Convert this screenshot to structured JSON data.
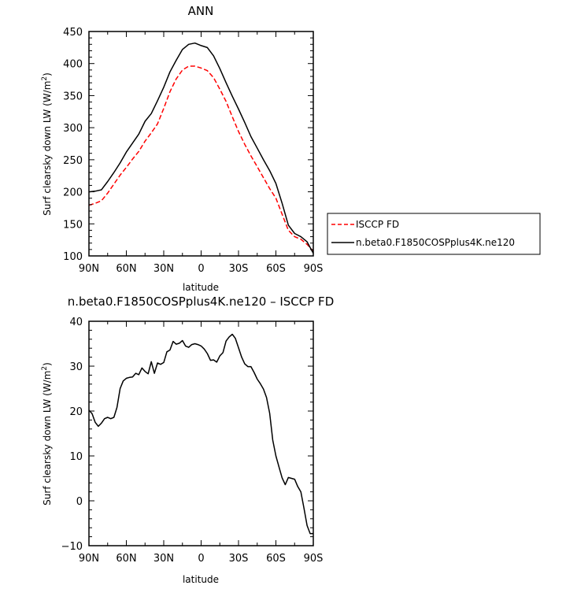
{
  "chart_data": [
    {
      "type": "line",
      "title": "ANN",
      "xlabel": "latitude",
      "ylabel": "Surf clearsky down LW (W/m²)",
      "ylabel_main": "Surf clearsky down LW (W/m",
      "ylabel_sup": "2",
      "ylabel_end": ")",
      "xlim": [
        90,
        -90
      ],
      "ylim": [
        100,
        450
      ],
      "x_ticks": [
        90,
        60,
        30,
        0,
        -30,
        -60,
        -90
      ],
      "x_tick_labels": [
        "90N",
        "60N",
        "30N",
        "0",
        "30S",
        "60S",
        "90S"
      ],
      "y_ticks": [
        100,
        150,
        200,
        250,
        300,
        350,
        400,
        450
      ],
      "y_tick_labels": [
        "100",
        "150",
        "200",
        "250",
        "300",
        "350",
        "400",
        "450"
      ],
      "legend_placement": "outside right",
      "series": [
        {
          "name": "ISCCP FD",
          "color": "#ff0000",
          "dash": "dashed",
          "x": [
            90,
            85,
            80,
            75,
            70,
            65,
            60,
            55,
            50,
            45,
            40,
            35,
            30,
            25,
            20,
            15,
            10,
            5,
            0,
            -5,
            -10,
            -15,
            -20,
            -25,
            -30,
            -35,
            -40,
            -45,
            -50,
            -55,
            -60,
            -65,
            -70,
            -75,
            -80,
            -85,
            -90
          ],
          "values": [
            179,
            182,
            186,
            198,
            212,
            226,
            238,
            251,
            263,
            279,
            292,
            306,
            330,
            356,
            376,
            390,
            396,
            396,
            393,
            389,
            378,
            360,
            341,
            317,
            294,
            274,
            256,
            239,
            222,
            205,
            190,
            165,
            140,
            130,
            126,
            118,
            107
          ]
        },
        {
          "name": "n.beta0.F1850COSPplus4K.ne120",
          "color": "#000000",
          "dash": "solid",
          "x": [
            90,
            85,
            80,
            75,
            70,
            65,
            60,
            55,
            50,
            45,
            40,
            35,
            30,
            25,
            20,
            15,
            10,
            5,
            0,
            -5,
            -10,
            -15,
            -20,
            -25,
            -30,
            -35,
            -40,
            -45,
            -50,
            -55,
            -60,
            -65,
            -70,
            -75,
            -80,
            -85,
            -90
          ],
          "values": [
            200,
            201,
            203,
            216,
            230,
            245,
            262,
            276,
            290,
            310,
            322,
            342,
            363,
            387,
            405,
            422,
            430,
            432,
            428,
            425,
            412,
            392,
            370,
            349,
            329,
            308,
            286,
            268,
            250,
            233,
            213,
            182,
            148,
            135,
            130,
            122,
            104
          ]
        }
      ]
    },
    {
      "type": "line",
      "title": "n.beta0.F1850COSPplus4K.ne120 – ISCCP FD",
      "xlabel": "latitude",
      "ylabel": "Surf clearsky down LW (W/m²)",
      "ylabel_main": "Surf clearsky down LW (W/m",
      "ylabel_sup": "2",
      "ylabel_end": ")",
      "xlim": [
        90,
        -90
      ],
      "ylim": [
        -10,
        40
      ],
      "x_ticks": [
        90,
        60,
        30,
        0,
        -30,
        -60,
        -90
      ],
      "x_tick_labels": [
        "90N",
        "60N",
        "30N",
        "0",
        "30S",
        "60S",
        "90S"
      ],
      "y_ticks": [
        -10,
        0,
        10,
        20,
        30,
        40
      ],
      "y_tick_labels": [
        "−10",
        "0",
        "10",
        "20",
        "30",
        "40"
      ],
      "series": [
        {
          "color": "#000000",
          "dash": "solid",
          "x": [
            90,
            87.5,
            85,
            82.5,
            80,
            77.5,
            75,
            72.5,
            70,
            67.5,
            65,
            62.5,
            60,
            57.5,
            55,
            52.5,
            50,
            47.5,
            45,
            42.5,
            40,
            37.5,
            35,
            32.5,
            30,
            27.5,
            25,
            22.5,
            20,
            17.5,
            15,
            12.5,
            10,
            7.5,
            5,
            2.5,
            0,
            -2.5,
            -5,
            -7.5,
            -10,
            -12.5,
            -15,
            -17.5,
            -20,
            -22.5,
            -25,
            -27.5,
            -30,
            -32.5,
            -35,
            -37.5,
            -40,
            -42.5,
            -45,
            -47.5,
            -50,
            -52.5,
            -55,
            -57.5,
            -60,
            -62.5,
            -65,
            -67.5,
            -70,
            -72.5,
            -75,
            -77.5,
            -80,
            -82.5,
            -85,
            -87.5,
            -90
          ],
          "values": [
            20.2,
            19.4,
            17.5,
            16.6,
            17.3,
            18.3,
            18.6,
            18.3,
            18.6,
            20.8,
            25.0,
            26.7,
            27.3,
            27.5,
            27.6,
            28.4,
            28.1,
            29.6,
            28.8,
            28.3,
            31.0,
            28.4,
            30.7,
            30.4,
            30.8,
            33.2,
            33.6,
            35.5,
            34.9,
            35.1,
            35.7,
            34.5,
            34.2,
            34.8,
            35.0,
            34.8,
            34.5,
            33.8,
            32.8,
            31.3,
            31.4,
            30.9,
            32.3,
            33.0,
            35.6,
            36.5,
            37.1,
            36.2,
            34.1,
            32.0,
            30.5,
            29.9,
            29.9,
            28.6,
            27.1,
            26.1,
            24.9,
            23.0,
            19.5,
            13.5,
            10.0,
            7.5,
            5.1,
            3.6,
            5.2,
            5.0,
            4.8,
            3.2,
            2.0,
            -1.6,
            -5.5,
            -7.3,
            -7.3
          ]
        }
      ]
    }
  ]
}
